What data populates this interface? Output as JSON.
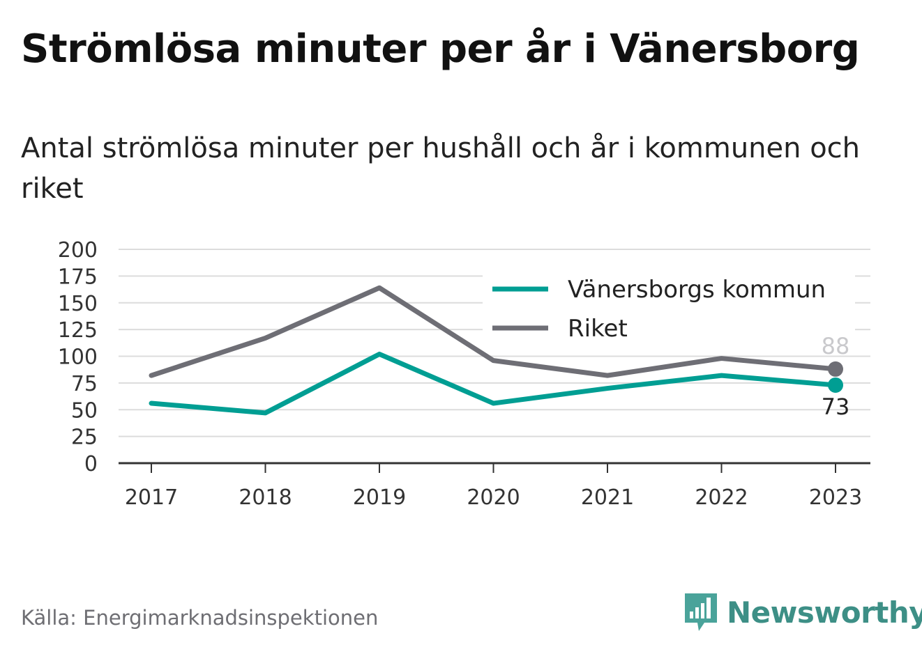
{
  "header": {
    "title": "Strömlösa minuter per år i Vänersborg",
    "subtitle": "Antal strömlösa minuter per hushåll och år i kommunen och riket"
  },
  "chart_data": {
    "type": "line",
    "x": [
      "2017",
      "2018",
      "2019",
      "2020",
      "2021",
      "2022",
      "2023"
    ],
    "series": [
      {
        "name": "Vänersborgs kommun",
        "color": "#009e93",
        "values": [
          56,
          47,
          102,
          56,
          70,
          82,
          73
        ]
      },
      {
        "name": "Riket",
        "color": "#6e6e75",
        "values": [
          82,
          117,
          164,
          96,
          82,
          98,
          88
        ]
      }
    ],
    "end_labels": [
      "73",
      "88"
    ],
    "yticks": [
      "0",
      "25",
      "50",
      "75",
      "100",
      "125",
      "150",
      "175",
      "200"
    ],
    "ylim": [
      0,
      200
    ],
    "grid": true,
    "legend_position": "top-right"
  },
  "footer": {
    "source": "Källa: Energimarknadsinspektionen",
    "brand": "Newsworthy",
    "brand_icon": "bar-chart-speech-bubble-icon"
  }
}
